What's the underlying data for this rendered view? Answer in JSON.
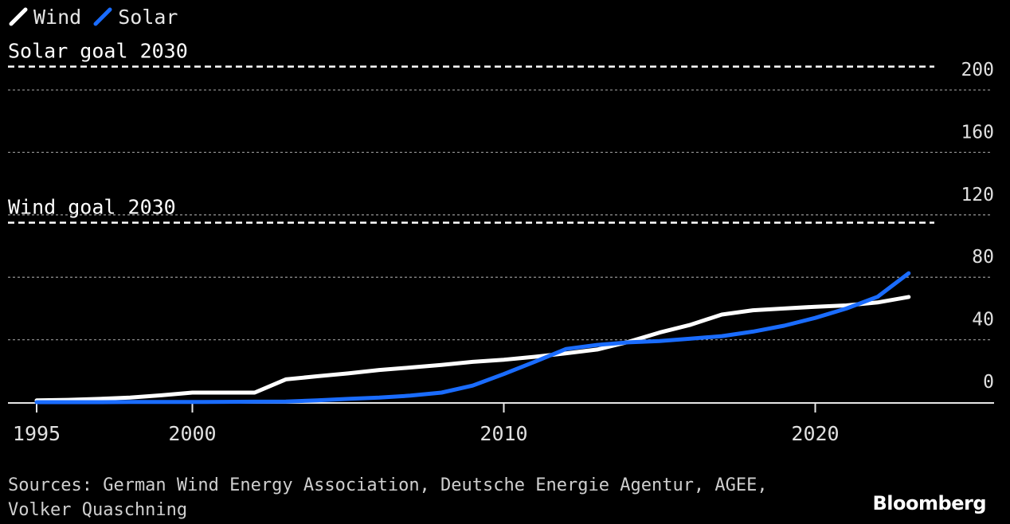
{
  "chart_data": {
    "type": "line",
    "legend": [
      {
        "name": "Wind",
        "color": "#ffffff"
      },
      {
        "name": "Solar",
        "color": "#1a6cff"
      }
    ],
    "xlim": [
      1995,
      2026
    ],
    "ylim": [
      0,
      200
    ],
    "x_ticks": [
      1995,
      2000,
      2010,
      2020
    ],
    "y_ticks": [
      0,
      40,
      80,
      120,
      160,
      200
    ],
    "grid": true,
    "x": [
      1995,
      1996,
      1997,
      1998,
      1999,
      2000,
      2001,
      2002,
      2003,
      2004,
      2005,
      2006,
      2007,
      2008,
      2009,
      2010,
      2011,
      2012,
      2013,
      2014,
      2015,
      2016,
      2017,
      2018,
      2019,
      2020,
      2021,
      2022,
      2023
    ],
    "series": [
      {
        "name": "Wind",
        "color": "#ffffff",
        "values": [
          1.1,
          1.5,
          2.1,
          2.9,
          4.4,
          6.1,
          6.1,
          6.1,
          14.6,
          16.6,
          18.4,
          20.6,
          22.2,
          23.9,
          25.8,
          27.2,
          29.1,
          31.3,
          33.7,
          38.6,
          44.6,
          49.6,
          56.1,
          58.9,
          60.0,
          61.1,
          62.0,
          63.9,
          67.4
        ]
      },
      {
        "name": "Solar",
        "color": "#1a6cff",
        "values": [
          0,
          0,
          0,
          0.1,
          0.1,
          0.1,
          0.2,
          0.3,
          0.4,
          1.1,
          2.1,
          2.9,
          4.2,
          6.1,
          10.6,
          18.0,
          25.9,
          34.1,
          36.7,
          38.3,
          39.2,
          40.7,
          42.3,
          45.2,
          49.0,
          54.0,
          60.0,
          67.5,
          82.6
        ]
      }
    ],
    "reference_lines": [
      {
        "label": "Solar goal 2030",
        "value": 215
      },
      {
        "label": "Wind goal 2030",
        "value": 115
      }
    ]
  },
  "source": {
    "line1": "Sources: German Wind Energy Association, Deutsche Energie Agentur, AGEE,",
    "line2": "Volker Quaschning"
  },
  "brand": "Bloomberg"
}
